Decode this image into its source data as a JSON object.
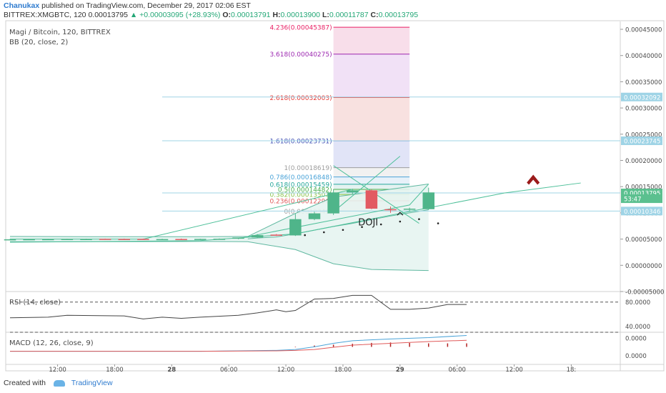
{
  "header": {
    "author": "Chanukax",
    "published_text": "published on TradingView.com, December 29, 2017 02:06 EST",
    "symbol": "BITTREX:XMGBTC, 120",
    "price": "0.00013795",
    "change": "▲ +0.00003095 (+28.93%)",
    "ohlc": {
      "o_label": "O:",
      "o": "0.00013791",
      "h_label": "H:",
      "h": "0.00013900",
      "l_label": "L:",
      "l": "0.00011787",
      "c_label": "C:",
      "c": "0.00013795"
    }
  },
  "footer": {
    "created_with": "Created with",
    "brand": "TradingView"
  },
  "colors": {
    "up": "#4fb58a",
    "down": "#e25a62",
    "bb_line": "#5fb8a0",
    "bb_fill": "#e6f4f1",
    "trend": "#4fc09a",
    "arrow": "#9b1b1b",
    "axis_text": "#4a4a4a",
    "hline": "#9fd4e6"
  },
  "chart_data": [
    {
      "type": "candlestick",
      "title": "Magi / Bitcoin, 120, BITTREX",
      "indicator_label": "BB (20, close, 2)",
      "ylim": [
        -5e-05,
        0.000465
      ],
      "y_ticks": [
        "0.00045000",
        "0.00040000",
        "0.00035000",
        "0.00030000",
        "0.00025000",
        "0.00020000",
        "0.00015000",
        "0.00010000",
        "0.00005000",
        "0.00000000",
        "-0.00005000"
      ],
      "y_tick_values": [
        0.00045,
        0.0004,
        0.00035,
        0.0003,
        0.00025,
        0.0002,
        0.00015,
        0.0001,
        5e-05,
        0,
        -5e-05
      ],
      "x_range": [
        0,
        64
      ],
      "x_tick_labels": [
        "12:00",
        "18:00",
        "28",
        "06:00",
        "12:00",
        "18:00",
        "29",
        "06:00",
        "12:00",
        "18:"
      ],
      "x_tick_positions": [
        5,
        11,
        17,
        23,
        29,
        35,
        41,
        47,
        53,
        59
      ],
      "candles": [
        {
          "x": 0,
          "o": 4.92e-05,
          "h": 5.02e-05,
          "l": 4.84e-05,
          "c": 4.96e-05
        },
        {
          "x": 2,
          "o": 4.94e-05,
          "h": 5.02e-05,
          "l": 4.86e-05,
          "c": 4.98e-05
        },
        {
          "x": 4,
          "o": 4.96e-05,
          "h": 5.04e-05,
          "l": 4.88e-05,
          "c": 4.99e-05
        },
        {
          "x": 6,
          "o": 4.97e-05,
          "h": 5.08e-05,
          "l": 4.9e-05,
          "c": 5.03e-05
        },
        {
          "x": 8,
          "o": 5e-05,
          "h": 5.08e-05,
          "l": 4.94e-05,
          "c": 5.02e-05
        },
        {
          "x": 10,
          "o": 5.05e-05,
          "h": 5.1e-05,
          "l": 4.96e-05,
          "c": 4.98e-05
        },
        {
          "x": 12,
          "o": 5.03e-05,
          "h": 5.1e-05,
          "l": 4.94e-05,
          "c": 4.97e-05
        },
        {
          "x": 14,
          "o": 5.04e-05,
          "h": 5.1e-05,
          "l": 4.92e-05,
          "c": 4.94e-05
        },
        {
          "x": 16,
          "o": 4.94e-05,
          "h": 5.06e-05,
          "l": 4.88e-05,
          "c": 5e-05
        },
        {
          "x": 18,
          "o": 5.02e-05,
          "h": 5.1e-05,
          "l": 4.94e-05,
          "c": 4.97e-05
        },
        {
          "x": 20,
          "o": 4.97e-05,
          "h": 5.08e-05,
          "l": 4.9e-05,
          "c": 5.03e-05
        },
        {
          "x": 22,
          "o": 5.03e-05,
          "h": 5.12e-05,
          "l": 4.96e-05,
          "c": 5.06e-05
        },
        {
          "x": 24,
          "o": 5.07e-05,
          "h": 5.2e-05,
          "l": 5e-05,
          "c": 5.3e-05
        },
        {
          "x": 26,
          "o": 5.3e-05,
          "h": 5.95e-05,
          "l": 5.22e-05,
          "c": 5.75e-05
        },
        {
          "x": 28,
          "o": 5.85e-05,
          "h": 5.96e-05,
          "l": 5.6e-05,
          "c": 5.7e-05
        },
        {
          "x": 30,
          "o": 5.7e-05,
          "h": 9.8e-05,
          "l": 5.6e-05,
          "c": 8.8e-05
        },
        {
          "x": 32,
          "o": 8.8e-05,
          "h": 0.000102,
          "l": 8.6e-05,
          "c": 9.9e-05
        },
        {
          "x": 34,
          "o": 9.9e-05,
          "h": 0.000145,
          "l": 9.6e-05,
          "c": 0.000139
        },
        {
          "x": 36,
          "o": 0.000139,
          "h": 0.000146,
          "l": 0.000135,
          "c": 0.000143
        },
        {
          "x": 38,
          "o": 0.000143,
          "h": 0.000145,
          "l": 0.000107,
          "c": 0.000108
        },
        {
          "x": 40,
          "o": 0.000107,
          "h": 0.000112,
          "l": 0.0001,
          "c": 0.000106
        },
        {
          "x": 42,
          "o": 0.000106,
          "h": 0.00011,
          "l": 0.000103,
          "c": 0.000108
        },
        {
          "x": 44,
          "o": 0.000107,
          "h": 0.000148,
          "l": 0.000106,
          "c": 0.000139
        }
      ],
      "bb_upper": [
        [
          0,
          5.5e-05
        ],
        [
          10,
          5.45e-05
        ],
        [
          20,
          5.45e-05
        ],
        [
          25,
          5.5e-05
        ],
        [
          30,
          9.9e-05
        ],
        [
          34,
          0.00013
        ],
        [
          38,
          0.00014
        ],
        [
          44,
          0.000155
        ]
      ],
      "bb_lower": [
        [
          0,
          4.5e-05
        ],
        [
          10,
          4.5e-05
        ],
        [
          20,
          4.55e-05
        ],
        [
          25,
          4.5e-05
        ],
        [
          30,
          3e-05
        ],
        [
          34,
          3e-06
        ],
        [
          38,
          -8e-06
        ],
        [
          44,
          -1e-05
        ]
      ],
      "bb_basis": [
        [
          25,
          5.05e-05
        ],
        [
          26,
          5.2e-05
        ],
        [
          28,
          5.4e-05
        ],
        [
          30,
          6e-05
        ],
        [
          32,
          6.7e-05
        ],
        [
          34,
          7.4e-05
        ],
        [
          36,
          8e-05
        ],
        [
          38,
          8.7e-05
        ],
        [
          40,
          9.4e-05
        ],
        [
          42,
          0.0001
        ],
        [
          44,
          0.000106
        ]
      ],
      "fibonacci": {
        "x_start": 34,
        "x_end": 42,
        "levels": [
          {
            "ratio": 0,
            "price": 0.00010346,
            "label": "0(0.00010346)",
            "color": "#9e9e9e",
            "fill": "#eef2f2"
          },
          {
            "ratio": 0.236,
            "price": 0.00012296,
            "label": "0.236(0.00012296)",
            "color": "#e05a5a",
            "fill": "#fbe3e3"
          },
          {
            "ratio": 0.382,
            "price": 0.00013503,
            "label": "0.382(0.00013503)",
            "color": "#8bc34a",
            "fill": "#eaf5dc"
          },
          {
            "ratio": 0.5,
            "price": 0.00014482,
            "label": "0.5(0.00014482)",
            "color": "#4caf50",
            "fill": "#e1f2e2"
          },
          {
            "ratio": 0.618,
            "price": 0.00015459,
            "label": "0.618(0.00015459)",
            "color": "#26a69a",
            "fill": "#dff0ef"
          },
          {
            "ratio": 0.786,
            "price": 0.00016848,
            "label": "0.786(0.00016848)",
            "color": "#4aa3d8",
            "fill": "#e3eff8"
          },
          {
            "ratio": 1,
            "price": 0.00018619,
            "label": "1(0.00018619)",
            "color": "#9e9e9e",
            "fill": "#eeeeee"
          },
          {
            "ratio": 1.618,
            "price": 0.00023731,
            "label": "1.618(0.00023731)",
            "color": "#3f51b5",
            "fill": "#dcdff6"
          },
          {
            "ratio": 2.618,
            "price": 0.00032003,
            "label": "2.618(0.00032003)",
            "color": "#e53935",
            "fill": "#f7dcdb"
          },
          {
            "ratio": 3.618,
            "price": 0.00040275,
            "label": "3.618(0.00040275)",
            "color": "#9c27b0",
            "fill": "#eedcf4"
          },
          {
            "ratio": 4.236,
            "price": 0.00045387,
            "label": "4.236(0.00045387)",
            "color": "#e91e63",
            "fill": "#f7d8e6"
          }
        ]
      },
      "trendlines": [
        [
          [
            0,
            5e-05
          ],
          [
            14,
            5e-05
          ],
          [
            36,
            0.000145
          ]
        ],
        [
          [
            0,
            4.4e-05
          ],
          [
            20,
            4.7e-05
          ],
          [
            30,
            6e-05
          ],
          [
            52,
            0.000138
          ],
          [
            60,
            0.000157
          ]
        ],
        [
          [
            24,
            5.1e-05
          ],
          [
            42,
            0.000115
          ],
          [
            44,
            0.000155
          ]
        ],
        [
          [
            34,
            0.000102
          ],
          [
            41,
            0.000208
          ]
        ],
        [
          [
            34,
            0.00019
          ],
          [
            43,
            8e-05
          ]
        ]
      ],
      "dotted": [
        [
          31,
          5.75e-05
        ],
        [
          33,
          6.3e-05
        ],
        [
          35,
          6.75e-05
        ],
        [
          37,
          7.3e-05
        ],
        [
          39,
          7.8e-05
        ],
        [
          41,
          8.35e-05
        ],
        [
          43,
          8.8e-05
        ],
        [
          45,
          8e-05
        ]
      ],
      "annotation_doji": {
        "text": "DOJI",
        "x": 36.6,
        "y": 7.6e-05
      },
      "annotation_caret": {
        "x": 41,
        "y": 0.000101
      },
      "up_arrow": {
        "x": 55,
        "y": 0.000166
      },
      "price_labels": [
        {
          "value": 0.00032092,
          "text": "0.00032092",
          "bg": "#9fd4e6",
          "line": true
        },
        {
          "value": 0.00023745,
          "text": "0.00023745",
          "bg": "#9fd4e6",
          "line": true
        },
        {
          "value": 0.00013795,
          "text": "0.00013795",
          "bg": "#5bc08f",
          "line": true
        },
        {
          "value": 0.000127,
          "text": "53:47",
          "bg": "#5bc08f",
          "line": false
        },
        {
          "value": 0.00010346,
          "text": "0.00010346",
          "bg": "#9fd4e6",
          "line": true
        }
      ]
    },
    {
      "type": "line",
      "title": "RSI (14, close)",
      "ylim": [
        30,
        95
      ],
      "y_ticks": [
        "80.0000",
        "40.0000"
      ],
      "y_tick_values": [
        80,
        40
      ],
      "bands": [
        80,
        30
      ],
      "series": [
        {
          "name": "",
          "points": [
            [
              0,
              54
            ],
            [
              4,
              55
            ],
            [
              6,
              58
            ],
            [
              12,
              57
            ],
            [
              14,
              52
            ],
            [
              16,
              55
            ],
            [
              18,
              53
            ],
            [
              20,
              55
            ],
            [
              24,
              58
            ],
            [
              26,
              62
            ],
            [
              28,
              67
            ],
            [
              29,
              64
            ],
            [
              30,
              66
            ],
            [
              32,
              85
            ],
            [
              34,
              86
            ],
            [
              36,
              91
            ],
            [
              38,
              91
            ],
            [
              40,
              68
            ],
            [
              42,
              68
            ],
            [
              44,
              70
            ],
            [
              46,
              76
            ],
            [
              48,
              76
            ]
          ]
        }
      ]
    },
    {
      "type": "line",
      "title": "MACD (12, 26, close, 9)",
      "ylim": [
        -4e-06,
        3e-06
      ],
      "y_ticks": [
        "0.0000",
        "0.0000"
      ],
      "y_tick_values": [
        2e-06,
        -2e-06
      ],
      "series": [
        {
          "name": "",
          "color": "#4aa3d8",
          "points": [
            [
              0,
              -1e-06
            ],
            [
              20,
              -1e-06
            ],
            [
              28,
              -8e-07
            ],
            [
              30,
              -6e-07
            ],
            [
              32,
              0.0
            ],
            [
              34,
              8e-07
            ],
            [
              36,
              1.4e-06
            ],
            [
              40,
              1.8e-06
            ],
            [
              44,
              2.1e-06
            ],
            [
              48,
              2.6e-06
            ]
          ]
        },
        {
          "name": "",
          "color": "#e05a5a",
          "points": [
            [
              0,
              -1e-06
            ],
            [
              20,
              -1e-06
            ],
            [
              28,
              -9e-07
            ],
            [
              30,
              -8e-07
            ],
            [
              32,
              -6e-07
            ],
            [
              34,
              -1e-07
            ],
            [
              36,
              4e-07
            ],
            [
              40,
              8e-07
            ],
            [
              44,
              1.2e-06
            ],
            [
              48,
              1.5e-06
            ]
          ]
        }
      ],
      "histogram": [
        [
          30,
          -1e-07
        ],
        [
          32,
          3e-07
        ],
        [
          34,
          5e-07
        ],
        [
          36,
          7e-07
        ],
        [
          38,
          9e-07
        ],
        [
          40,
          1e-06
        ],
        [
          42,
          9e-07
        ],
        [
          44,
          8e-07
        ],
        [
          46,
          8e-07
        ],
        [
          48,
          8e-07
        ]
      ]
    }
  ]
}
